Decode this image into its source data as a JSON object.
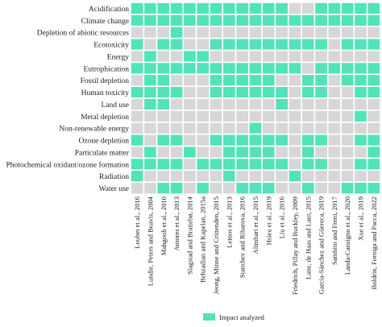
{
  "chart_data": {
    "type": "heatmap",
    "title": "",
    "rows": [
      "Acidification",
      "Climate change",
      "Depletion of abiotic resources",
      "Ecotoxicity",
      "Energy",
      "Eutrophication",
      "Fossil depletion",
      "Human toxicity",
      "Land use",
      "Metal depletion",
      "Non-renewable energy",
      "Ozone depletion",
      "Particulate matter",
      "Photochemical oxidant/ozone formation",
      "Radiation",
      "Water use"
    ],
    "columns": [
      "Loubet et al., 2016",
      "Lundie, Peters and Beavis, 2004",
      "Mahgoub et al., 2010",
      "Amores et al., 2013",
      "Slagstad and Brattebø, 2014",
      "Behzadian and Kapelan, 2015a",
      "Jeong, Minne and Crittenden, 2015",
      "Lemos et al., 2013",
      "Stanchev and Ribarova, 2016",
      "Alimbari et al., 2015",
      "Hsieu et al., 2019",
      "Liu et al., 2016",
      "Friedrich, Pillay and Buckley, 2009",
      "Lane, de Haas and Lant, 2015",
      "García-Sánchez and Güereca, 2019",
      "Sambito and Freni, 2017",
      "Landa-Cansigno et al., 2020",
      "Xue et al., 2019",
      "Boldrin, Forniga and Pacca, 2022"
    ],
    "values": [
      [
        1,
        1,
        1,
        1,
        1,
        1,
        1,
        1,
        1,
        1,
        1,
        1,
        0,
        0,
        1,
        1,
        1,
        1,
        1
      ],
      [
        1,
        1,
        1,
        1,
        1,
        1,
        1,
        1,
        1,
        1,
        1,
        1,
        1,
        1,
        1,
        1,
        1,
        1,
        1
      ],
      [
        0,
        0,
        0,
        1,
        0,
        0,
        0,
        0,
        0,
        0,
        0,
        0,
        0,
        0,
        0,
        0,
        0,
        0,
        0
      ],
      [
        1,
        0,
        1,
        1,
        0,
        0,
        1,
        1,
        1,
        1,
        1,
        1,
        1,
        1,
        1,
        0,
        1,
        1,
        1
      ],
      [
        0,
        1,
        0,
        0,
        1,
        1,
        0,
        0,
        0,
        0,
        0,
        0,
        0,
        0,
        0,
        0,
        0,
        0,
        0
      ],
      [
        1,
        1,
        1,
        1,
        1,
        1,
        1,
        1,
        1,
        1,
        1,
        1,
        1,
        0,
        1,
        1,
        1,
        1,
        1
      ],
      [
        0,
        1,
        1,
        0,
        0,
        0,
        1,
        1,
        1,
        1,
        1,
        0,
        0,
        1,
        1,
        0,
        1,
        1,
        1
      ],
      [
        1,
        1,
        1,
        1,
        0,
        0,
        1,
        1,
        1,
        1,
        1,
        1,
        0,
        1,
        1,
        0,
        0,
        1,
        1
      ],
      [
        0,
        1,
        1,
        0,
        0,
        0,
        0,
        0,
        0,
        0,
        0,
        1,
        0,
        0,
        0,
        0,
        0,
        0,
        0
      ],
      [
        0,
        0,
        0,
        0,
        0,
        0,
        0,
        0,
        0,
        0,
        0,
        0,
        0,
        0,
        0,
        0,
        0,
        1,
        0
      ],
      [
        0,
        0,
        0,
        0,
        0,
        0,
        0,
        0,
        0,
        1,
        0,
        0,
        0,
        0,
        0,
        0,
        0,
        0,
        0
      ],
      [
        1,
        0,
        1,
        1,
        0,
        0,
        1,
        1,
        1,
        1,
        1,
        1,
        0,
        1,
        1,
        0,
        0,
        1,
        1
      ],
      [
        0,
        1,
        0,
        0,
        1,
        0,
        0,
        1,
        1,
        1,
        1,
        0,
        0,
        1,
        0,
        0,
        0,
        0,
        1
      ],
      [
        1,
        1,
        1,
        1,
        0,
        1,
        1,
        1,
        1,
        1,
        1,
        1,
        0,
        1,
        1,
        0,
        0,
        1,
        1
      ],
      [
        1,
        0,
        0,
        0,
        0,
        0,
        0,
        1,
        0,
        0,
        0,
        0,
        1,
        0,
        0,
        0,
        0,
        0,
        0
      ],
      [
        0,
        0,
        1,
        1,
        0,
        1,
        0,
        0,
        1,
        1,
        1,
        0,
        0,
        1,
        0,
        0,
        1,
        1,
        1
      ]
    ],
    "colors": {
      "analyzed": "#52e3b9",
      "not_analyzed": "#d7d7d7",
      "gridline": "#ffffff"
    },
    "legend": {
      "label": "Impact analyzed",
      "placement": "bottom-center"
    }
  }
}
